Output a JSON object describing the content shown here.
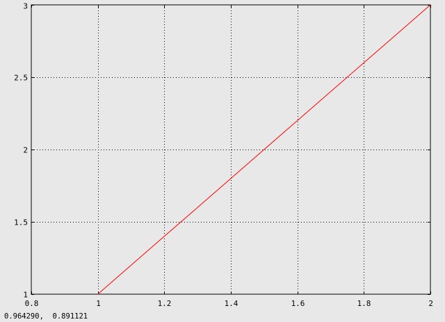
{
  "status": {
    "coordinate_readout": "0.964290,  0.891121"
  },
  "colors": {
    "background": "#e8e8e8",
    "axis": "#000000",
    "grid": "#000000",
    "series": "#ff0000"
  },
  "chart_data": {
    "type": "line",
    "title": "",
    "xlabel": "",
    "ylabel": "",
    "xlim": [
      0.8,
      2.0
    ],
    "ylim": [
      1.0,
      3.0
    ],
    "x_ticks": [
      0.8,
      1.0,
      1.2,
      1.4,
      1.6,
      1.8,
      2.0
    ],
    "x_tick_labels": [
      "0.8",
      "1",
      "1.2",
      "1.4",
      "1.6",
      "1.8",
      "2"
    ],
    "y_ticks": [
      1.0,
      1.5,
      2.0,
      2.5,
      3.0
    ],
    "y_tick_labels": [
      "1",
      "1.5",
      "2",
      "2.5",
      "3"
    ],
    "grid": true,
    "grid_style": "dotted",
    "series": [
      {
        "color": "#ff0000",
        "x": [
          1.0,
          1.1,
          1.2,
          1.3,
          1.4,
          1.5,
          1.6,
          1.7,
          1.8,
          1.9,
          2.0
        ],
        "y": [
          1.0,
          1.2,
          1.4,
          1.6,
          1.8,
          2.0,
          2.2,
          2.4,
          2.6,
          2.8,
          3.0
        ]
      }
    ]
  }
}
